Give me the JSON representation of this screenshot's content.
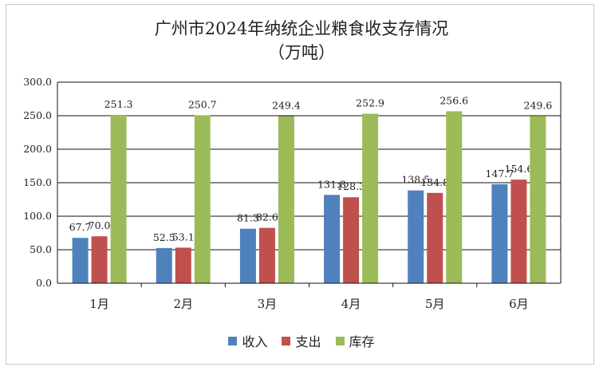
{
  "chart_data": {
    "type": "bar",
    "title": "广州市2024年纳统企业粮食收支存情况",
    "subtitle": "（万吨）",
    "categories": [
      "1月",
      "2月",
      "3月",
      "4月",
      "5月",
      "6月"
    ],
    "series": [
      {
        "name": "收入",
        "color": "#4f81bd",
        "values": [
          67.7,
          52.5,
          81.3,
          131.8,
          138.5,
          147.7
        ]
      },
      {
        "name": "支出",
        "color": "#c0504d",
        "values": [
          70.0,
          53.1,
          82.6,
          128.3,
          134.8,
          154.6
        ]
      },
      {
        "name": "库存",
        "color": "#9bbb59",
        "values": [
          251.3,
          250.7,
          249.4,
          252.9,
          256.6,
          249.6
        ]
      }
    ],
    "ylim": [
      0,
      300
    ],
    "yticks": [
      "0.0",
      "50.0",
      "100.0",
      "150.0",
      "200.0",
      "250.0",
      "300.0"
    ],
    "grid": true,
    "legend": "bottom"
  }
}
